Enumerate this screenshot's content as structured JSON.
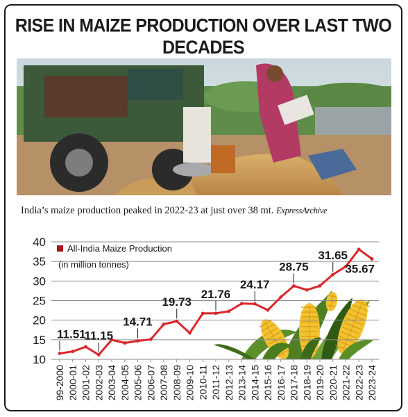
{
  "headline": "RISE IN MAIZE PRODUCTION OVER LAST TWO DECADES",
  "photo": {
    "description_icon": "farm-photo"
  },
  "caption": {
    "text": "India’s maize production peaked in 2022-23 at just over 38 mt.",
    "credit": "ExpressArchive"
  },
  "colors": {
    "line": "#d9262c",
    "marker": "#a8161b",
    "grid": "#8c8c8c",
    "text": "#1a1a1a"
  },
  "chart_data": {
    "type": "line",
    "legend": {
      "entries": [
        "All-India Maize Production"
      ],
      "note": "(in million tonnes)",
      "placement": "top-left"
    },
    "ylim": [
      10,
      40
    ],
    "yticks": [
      10,
      15,
      20,
      25,
      30,
      35,
      40
    ],
    "grid": true,
    "categories": [
      "99-2000",
      "2000-01",
      "2001-02",
      "2002-03",
      "2003-04",
      "2004-05",
      "2005-06",
      "2006-07",
      "2007-08",
      "2008-09",
      "2009-10",
      "2010-11",
      "2011-12",
      "2012-13",
      "2013-14",
      "2014-15",
      "2015-16",
      "2016-17",
      "2017-18",
      "2018-19",
      "2019-20",
      "2020-21",
      "2021-22",
      "2022-23",
      "2023-24"
    ],
    "series": [
      {
        "name": "All-India Maize Production",
        "values": [
          11.51,
          12.0,
          13.2,
          11.15,
          14.98,
          14.17,
          14.71,
          15.1,
          18.96,
          19.73,
          16.72,
          21.73,
          21.76,
          22.26,
          24.26,
          24.17,
          22.57,
          25.9,
          28.75,
          27.72,
          28.77,
          31.65,
          33.73,
          38.08,
          35.67
        ]
      }
    ],
    "labels": [
      {
        "index": 0,
        "text": "11.51"
      },
      {
        "index": 3,
        "text": "11.15"
      },
      {
        "index": 6,
        "text": "14.71"
      },
      {
        "index": 9,
        "text": "19.73"
      },
      {
        "index": 12,
        "text": "21.76"
      },
      {
        "index": 15,
        "text": "24.17"
      },
      {
        "index": 18,
        "text": "28.75"
      },
      {
        "index": 21,
        "text": "31.65"
      },
      {
        "index": 24,
        "text": "35.67"
      }
    ]
  }
}
